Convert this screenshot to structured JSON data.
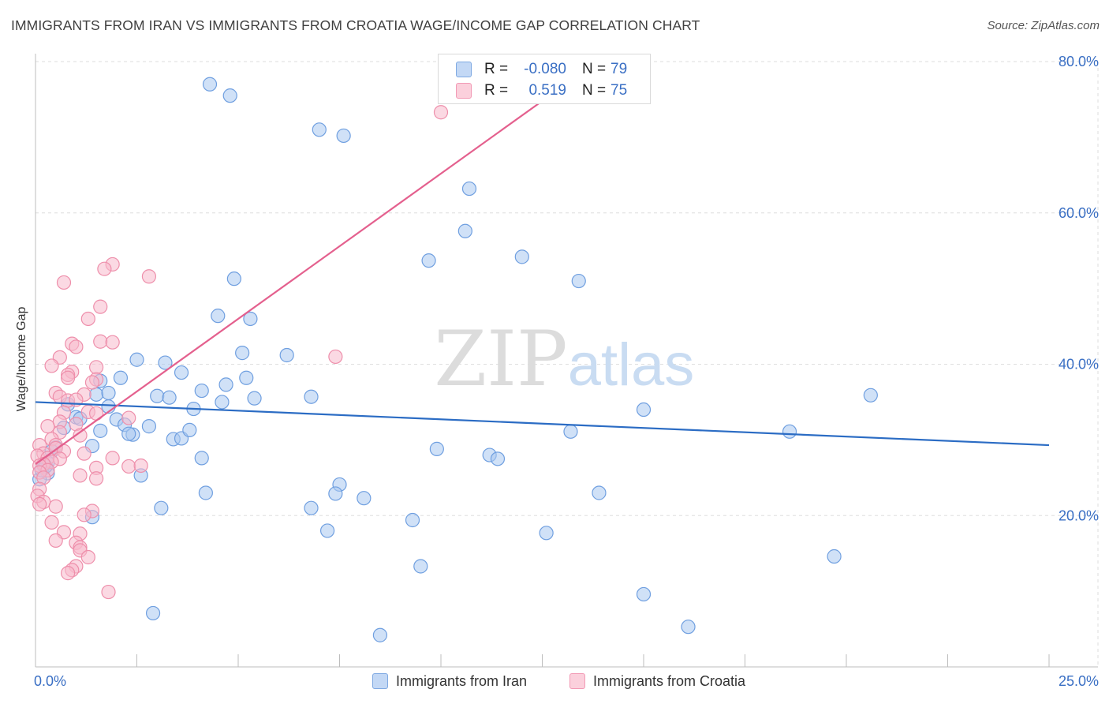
{
  "title": "IMMIGRANTS FROM IRAN VS IMMIGRANTS FROM CROATIA WAGE/INCOME GAP CORRELATION CHART",
  "source": "Source: ZipAtlas.com",
  "watermark": {
    "zip": "ZIP",
    "atlas": "atlas"
  },
  "legend_top": {
    "rows": [
      {
        "r_label": "R =",
        "r_value": "-0.080",
        "n_label": "N =",
        "n_value": "79"
      },
      {
        "r_label": "R =",
        "r_value": "0.519",
        "n_label": "N =",
        "n_value": "75"
      }
    ]
  },
  "legend_bottom": {
    "items": [
      {
        "label": "Immigrants from Iran"
      },
      {
        "label": "Immigrants from Croatia"
      }
    ]
  },
  "colors": {
    "iran_fill": "#a9c8f0",
    "iran_stroke": "#6f9fe0",
    "iran_line": "#2b6cc4",
    "croatia_fill": "#f7b9cc",
    "croatia_stroke": "#ee8fab",
    "croatia_line": "#e4608e",
    "tick_text": "#3a6fc4",
    "grid": "#dedede"
  },
  "chart_data": {
    "type": "scatter",
    "title": "IMMIGRANTS FROM IRAN VS IMMIGRANTS FROM CROATIA WAGE/INCOME GAP CORRELATION CHART",
    "xlabel": "",
    "ylabel": "Wage/Income Gap",
    "xlim": [
      0,
      25
    ],
    "ylim": [
      0,
      80
    ],
    "x_tick_labels": [
      "0.0%",
      "25.0%"
    ],
    "y_ticks": [
      20,
      40,
      60,
      80
    ],
    "y_tick_labels": [
      "20.0%",
      "40.0%",
      "60.0%",
      "80.0%"
    ],
    "series": [
      {
        "name": "Immigrants from Iran",
        "r": -0.08,
        "n": 79,
        "trend": {
          "x0": 0,
          "y0": 35.0,
          "x1": 25,
          "y1": 29.3
        },
        "points": [
          [
            4.3,
            77.0
          ],
          [
            4.8,
            75.5
          ],
          [
            7.0,
            71.0
          ],
          [
            7.6,
            70.2
          ],
          [
            10.7,
            63.2
          ],
          [
            10.6,
            57.6
          ],
          [
            9.7,
            53.7
          ],
          [
            12.0,
            54.2
          ],
          [
            13.4,
            51.0
          ],
          [
            4.9,
            51.3
          ],
          [
            4.5,
            46.4
          ],
          [
            5.3,
            46.0
          ],
          [
            6.2,
            41.2
          ],
          [
            5.1,
            41.5
          ],
          [
            2.5,
            40.6
          ],
          [
            3.2,
            40.2
          ],
          [
            3.6,
            38.9
          ],
          [
            2.1,
            38.2
          ],
          [
            5.2,
            38.2
          ],
          [
            1.6,
            37.8
          ],
          [
            4.7,
            37.3
          ],
          [
            4.1,
            36.5
          ],
          [
            1.5,
            36.0
          ],
          [
            1.8,
            36.2
          ],
          [
            3.0,
            35.8
          ],
          [
            3.3,
            35.6
          ],
          [
            5.4,
            35.5
          ],
          [
            6.8,
            35.7
          ],
          [
            4.6,
            35.0
          ],
          [
            0.8,
            34.7
          ],
          [
            1.8,
            34.4
          ],
          [
            3.9,
            34.1
          ],
          [
            20.6,
            35.9
          ],
          [
            15.0,
            34.0
          ],
          [
            1.0,
            33.0
          ],
          [
            1.1,
            32.8
          ],
          [
            2.0,
            32.7
          ],
          [
            2.2,
            32.0
          ],
          [
            2.8,
            31.8
          ],
          [
            0.7,
            31.6
          ],
          [
            1.6,
            31.2
          ],
          [
            2.4,
            30.7
          ],
          [
            2.3,
            30.8
          ],
          [
            3.4,
            30.1
          ],
          [
            3.6,
            30.2
          ],
          [
            3.8,
            31.3
          ],
          [
            13.2,
            31.1
          ],
          [
            18.6,
            31.1
          ],
          [
            1.4,
            29.2
          ],
          [
            0.5,
            29.0
          ],
          [
            0.4,
            28.5
          ],
          [
            9.9,
            28.8
          ],
          [
            11.2,
            28.0
          ],
          [
            11.4,
            27.5
          ],
          [
            4.1,
            27.6
          ],
          [
            0.3,
            27.0
          ],
          [
            0.2,
            26.6
          ],
          [
            0.3,
            25.6
          ],
          [
            2.6,
            25.3
          ],
          [
            7.5,
            24.1
          ],
          [
            7.4,
            22.9
          ],
          [
            8.1,
            22.3
          ],
          [
            4.2,
            23.0
          ],
          [
            13.9,
            23.0
          ],
          [
            3.1,
            21.0
          ],
          [
            6.8,
            21.0
          ],
          [
            1.4,
            19.8
          ],
          [
            9.3,
            19.4
          ],
          [
            7.2,
            18.0
          ],
          [
            12.6,
            17.7
          ],
          [
            19.7,
            14.6
          ],
          [
            9.5,
            13.3
          ],
          [
            15.0,
            9.6
          ],
          [
            2.9,
            7.1
          ],
          [
            8.5,
            4.2
          ],
          [
            16.1,
            5.3
          ],
          [
            0.1,
            24.8
          ],
          [
            0.15,
            26.0
          ],
          [
            0.25,
            26.5
          ]
        ]
      },
      {
        "name": "Immigrants from Croatia",
        "r": 0.519,
        "n": 75,
        "trend": {
          "x0": 0,
          "y0": 26.8,
          "x1": 13.7,
          "y1": 79.4
        },
        "points": [
          [
            10.0,
            73.3
          ],
          [
            1.9,
            53.2
          ],
          [
            1.7,
            52.6
          ],
          [
            2.8,
            51.6
          ],
          [
            0.7,
            50.8
          ],
          [
            1.6,
            47.6
          ],
          [
            1.3,
            46.0
          ],
          [
            1.6,
            43.0
          ],
          [
            1.9,
            42.9
          ],
          [
            0.9,
            42.7
          ],
          [
            1.0,
            42.3
          ],
          [
            7.4,
            41.0
          ],
          [
            0.6,
            40.9
          ],
          [
            0.4,
            39.8
          ],
          [
            1.5,
            39.6
          ],
          [
            0.9,
            39.0
          ],
          [
            0.8,
            38.6
          ],
          [
            1.5,
            38.0
          ],
          [
            0.8,
            38.2
          ],
          [
            1.4,
            37.6
          ],
          [
            0.5,
            36.2
          ],
          [
            1.2,
            36.0
          ],
          [
            0.6,
            35.7
          ],
          [
            0.8,
            35.2
          ],
          [
            1.0,
            35.3
          ],
          [
            1.3,
            33.7
          ],
          [
            1.5,
            33.5
          ],
          [
            0.7,
            33.6
          ],
          [
            2.3,
            32.9
          ],
          [
            0.6,
            32.4
          ],
          [
            1.0,
            32.1
          ],
          [
            0.3,
            31.8
          ],
          [
            0.6,
            31.0
          ],
          [
            1.1,
            30.6
          ],
          [
            0.4,
            30.1
          ],
          [
            0.5,
            29.3
          ],
          [
            0.1,
            29.3
          ],
          [
            0.2,
            28.2
          ],
          [
            0.5,
            28.9
          ],
          [
            0.7,
            28.5
          ],
          [
            1.2,
            28.2
          ],
          [
            0.05,
            27.9
          ],
          [
            0.3,
            27.6
          ],
          [
            0.6,
            27.5
          ],
          [
            0.4,
            27.1
          ],
          [
            0.2,
            26.8
          ],
          [
            0.1,
            26.6
          ],
          [
            0.3,
            26.0
          ],
          [
            0.1,
            25.7
          ],
          [
            2.3,
            26.5
          ],
          [
            0.2,
            25.0
          ],
          [
            1.5,
            26.3
          ],
          [
            1.5,
            24.9
          ],
          [
            1.1,
            25.3
          ],
          [
            0.1,
            23.5
          ],
          [
            0.05,
            22.6
          ],
          [
            0.2,
            21.8
          ],
          [
            0.1,
            21.5
          ],
          [
            0.5,
            21.2
          ],
          [
            1.4,
            20.6
          ],
          [
            1.2,
            20.1
          ],
          [
            0.4,
            19.1
          ],
          [
            0.7,
            17.8
          ],
          [
            1.1,
            17.6
          ],
          [
            0.5,
            16.7
          ],
          [
            1.0,
            16.4
          ],
          [
            1.1,
            15.8
          ],
          [
            1.1,
            15.4
          ],
          [
            1.3,
            14.5
          ],
          [
            1.0,
            13.3
          ],
          [
            0.9,
            12.8
          ],
          [
            0.8,
            12.4
          ],
          [
            1.8,
            9.9
          ],
          [
            1.9,
            27.6
          ],
          [
            2.6,
            26.6
          ]
        ]
      }
    ]
  }
}
